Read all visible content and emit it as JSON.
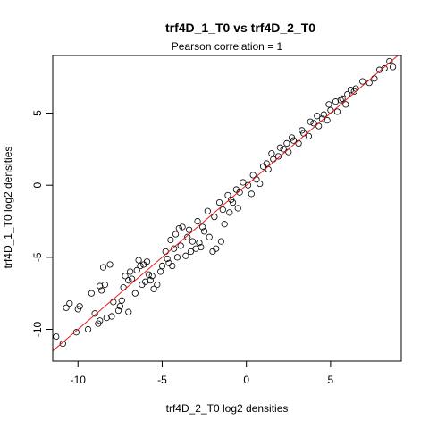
{
  "chart_data": {
    "type": "scatter",
    "title": "trf4D_1_T0 vs trf4D_2_T0",
    "subtitle": "Pearson correlation =  1",
    "xlabel": "trf4D_2_T0 log2 densities",
    "ylabel": "trf4D_1_T0 log2 densities",
    "xlim": [
      -11.5,
      9.2
    ],
    "ylim": [
      -12.2,
      9.0
    ],
    "xticks": [
      -10,
      -5,
      0,
      5
    ],
    "yticks": [
      -10,
      -5,
      0,
      5
    ],
    "tick_labels": {
      "x": [
        "-10",
        "-5",
        "0",
        "5"
      ],
      "y": [
        "-10",
        "-5",
        "0",
        "5"
      ]
    },
    "grid": false,
    "reference_line": {
      "slope": 1,
      "intercept": 0,
      "color": "#e41a1c"
    },
    "marker": "open-circle",
    "points": [
      [
        -11.3,
        -10.5
      ],
      [
        -10.9,
        -11.0
      ],
      [
        -10.1,
        -10.2
      ],
      [
        -9.4,
        -10.0
      ],
      [
        -10.0,
        -8.6
      ],
      [
        -10.5,
        -8.2
      ],
      [
        -10.7,
        -8.5
      ],
      [
        -9.0,
        -8.9
      ],
      [
        -9.9,
        -8.4
      ],
      [
        -9.2,
        -7.5
      ],
      [
        -8.7,
        -7.0
      ],
      [
        -8.4,
        -6.9
      ],
      [
        -8.6,
        -7.3
      ],
      [
        -8.1,
        -5.5
      ],
      [
        -8.5,
        -5.7
      ],
      [
        -8.7,
        -9.4
      ],
      [
        -8.3,
        -9.2
      ],
      [
        -8.0,
        -9.1
      ],
      [
        -8.8,
        -9.6
      ],
      [
        -7.9,
        -8.1
      ],
      [
        -7.5,
        -8.4
      ],
      [
        -7.0,
        -8.8
      ],
      [
        -7.6,
        -8.7
      ],
      [
        -7.3,
        -7.1
      ],
      [
        -7.0,
        -6.6
      ],
      [
        -7.2,
        -6.3
      ],
      [
        -6.8,
        -6.5
      ],
      [
        -6.9,
        -6.0
      ],
      [
        -6.5,
        -5.9
      ],
      [
        -6.4,
        -5.2
      ],
      [
        -6.3,
        -5.6
      ],
      [
        -6.1,
        -5.5
      ],
      [
        -5.9,
        -5.3
      ],
      [
        -5.8,
        -6.2
      ],
      [
        -6.0,
        -6.7
      ],
      [
        -5.6,
        -6.3
      ],
      [
        -5.5,
        -7.2
      ],
      [
        -5.3,
        -6.9
      ],
      [
        -5.0,
        -5.6
      ],
      [
        -4.8,
        -4.6
      ],
      [
        -4.7,
        -5.1
      ],
      [
        -4.3,
        -4.4
      ],
      [
        -4.5,
        -3.8
      ],
      [
        -4.2,
        -3.4
      ],
      [
        -4.0,
        -3.0
      ],
      [
        -3.8,
        -2.9
      ],
      [
        -3.5,
        -3.6
      ],
      [
        -3.2,
        -3.9
      ],
      [
        -2.7,
        -4.3
      ],
      [
        -2.5,
        -3.2
      ],
      [
        -1.8,
        -4.4
      ],
      [
        -1.5,
        -3.9
      ],
      [
        -2.0,
        -4.6
      ],
      [
        -2.2,
        -3.6
      ],
      [
        -1.3,
        -2.7
      ],
      [
        -3.0,
        -4.4
      ],
      [
        -3.3,
        -4.6
      ],
      [
        -2.8,
        -4.0
      ],
      [
        -3.6,
        -4.9
      ],
      [
        -4.4,
        -5.6
      ],
      [
        -4.1,
        -5.0
      ],
      [
        -5.1,
        -6.0
      ],
      [
        -4.6,
        -5.4
      ],
      [
        -6.2,
        -6.9
      ],
      [
        -5.7,
        -6.6
      ],
      [
        -7.4,
        -8.0
      ],
      [
        -6.6,
        -7.5
      ],
      [
        -0.8,
        -1.2
      ],
      [
        -1.0,
        -1.9
      ],
      [
        -0.5,
        -1.6
      ],
      [
        0.3,
        -0.6
      ],
      [
        0.8,
        0.1
      ],
      [
        1.2,
        1.5
      ],
      [
        1.5,
        2.2
      ],
      [
        2.0,
        2.6
      ],
      [
        2.4,
        2.9
      ],
      [
        2.7,
        3.3
      ],
      [
        3.3,
        3.8
      ],
      [
        3.8,
        4.4
      ],
      [
        4.2,
        4.8
      ],
      [
        4.6,
        4.9
      ],
      [
        4.9,
        5.6
      ],
      [
        5.3,
        5.8
      ],
      [
        5.7,
        6.0
      ],
      [
        6.2,
        6.6
      ],
      [
        6.5,
        6.7
      ],
      [
        6.9,
        7.2
      ],
      [
        7.3,
        7.1
      ],
      [
        7.6,
        7.4
      ],
      [
        7.9,
        8.0
      ],
      [
        8.2,
        8.1
      ],
      [
        8.5,
        8.6
      ],
      [
        8.7,
        8.2
      ],
      [
        -2.9,
        -2.5
      ],
      [
        -2.3,
        -1.8
      ],
      [
        -1.6,
        -1.2
      ],
      [
        -1.1,
        -0.7
      ],
      [
        -0.6,
        -0.3
      ],
      [
        -0.2,
        0.2
      ],
      [
        0.4,
        0.7
      ],
      [
        1.0,
        1.3
      ],
      [
        1.6,
        1.8
      ],
      [
        2.2,
        2.5
      ],
      [
        2.8,
        3.1
      ],
      [
        3.4,
        3.6
      ],
      [
        4.0,
        4.3
      ],
      [
        4.5,
        4.6
      ],
      [
        5.0,
        5.2
      ],
      [
        5.6,
        5.9
      ],
      [
        6.0,
        6.3
      ],
      [
        6.4,
        6.5
      ],
      [
        -3.9,
        -4.2
      ],
      [
        -3.4,
        -3.1
      ],
      [
        -2.6,
        -2.9
      ],
      [
        -1.9,
        -2.2
      ],
      [
        -1.4,
        -1.7
      ],
      [
        -0.9,
        -1.0
      ],
      [
        -0.4,
        -0.5
      ],
      [
        0.1,
        0.0
      ],
      [
        0.6,
        0.4
      ],
      [
        1.3,
        1.1
      ],
      [
        1.9,
        2.0
      ],
      [
        2.5,
        2.3
      ],
      [
        3.1,
        2.9
      ],
      [
        3.7,
        3.4
      ],
      [
        4.3,
        4.1
      ],
      [
        4.8,
        4.5
      ],
      [
        5.4,
        5.1
      ],
      [
        5.9,
        5.6
      ]
    ]
  }
}
